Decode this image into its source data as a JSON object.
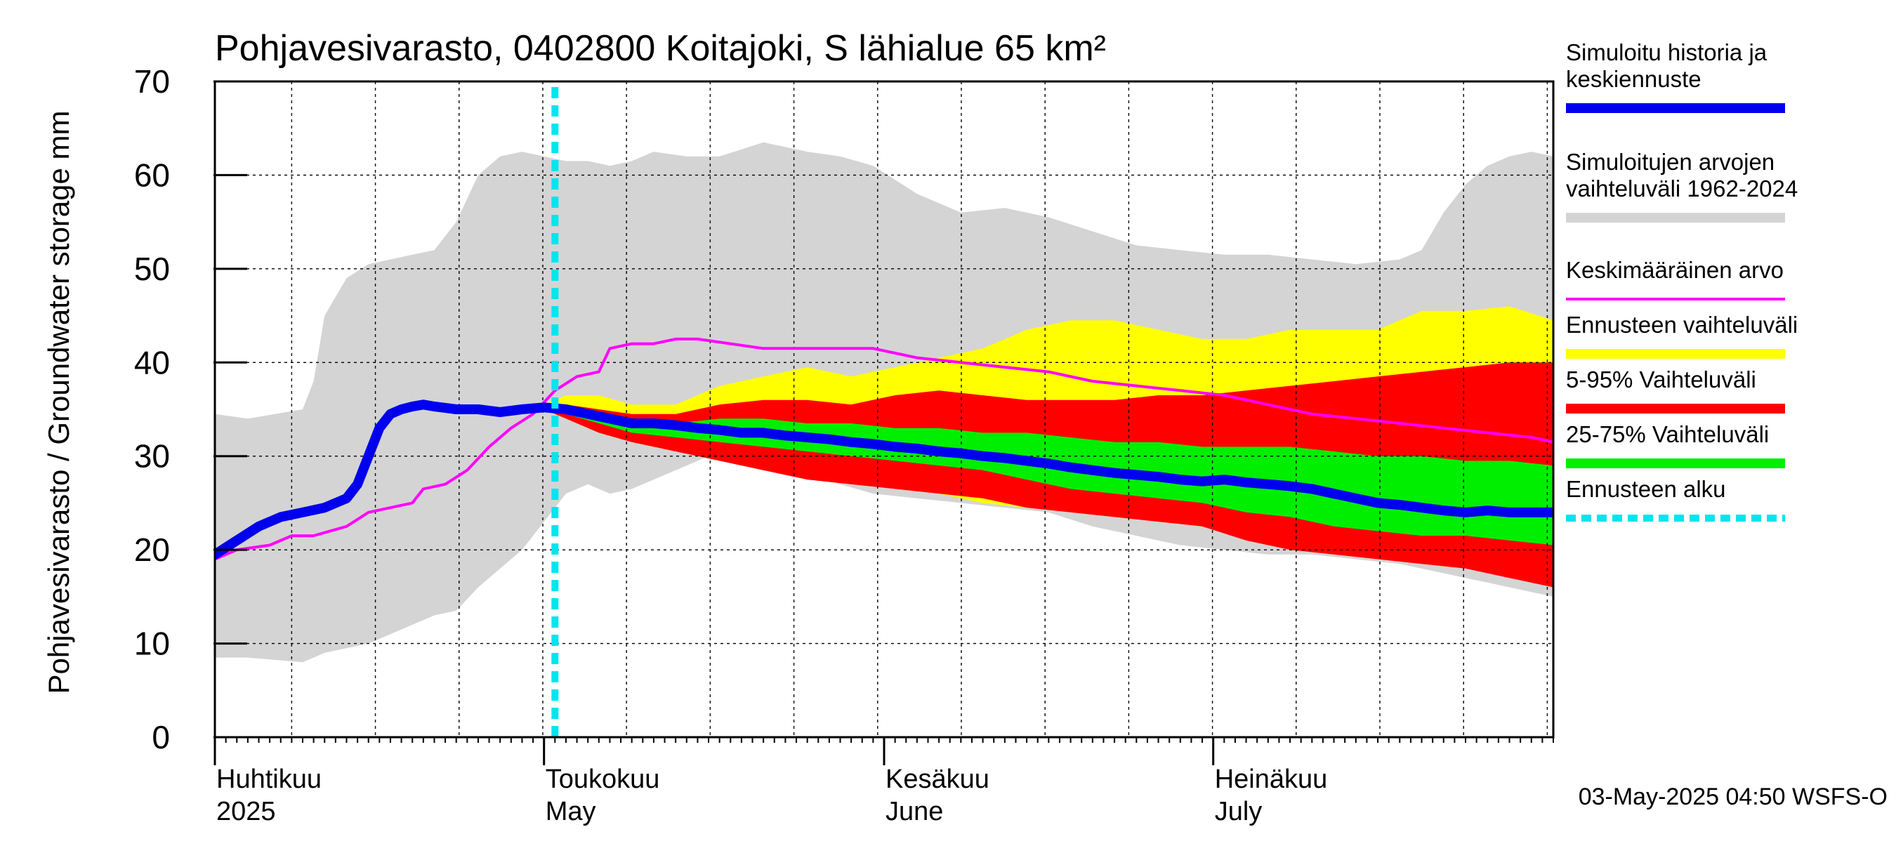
{
  "chart_data": {
    "type": "area",
    "title": "Pohjavesivarasto, 0402800 Koitajoki, S lähialue 65 km²",
    "ylabel": "Pohjavesivarasto / Groundwater storage   mm",
    "ylim": [
      0,
      70
    ],
    "yticks": [
      0,
      10,
      20,
      30,
      40,
      50,
      60,
      70
    ],
    "xlim_days": [
      0,
      122
    ],
    "month_labels": [
      {
        "fi": "Huhtikuu",
        "en": "2025",
        "day": 0
      },
      {
        "fi": "Toukokuu",
        "en": "May",
        "day": 30
      },
      {
        "fi": "Kesäkuu",
        "en": "June",
        "day": 61
      },
      {
        "fi": "Heinäkuu",
        "en": "July",
        "day": 91
      }
    ],
    "forecast_start_day": 31,
    "footer": "03-May-2025 04:50 WSFS-O",
    "legend": [
      {
        "label": "Simuloitu historia ja keskiennuste",
        "color": "#0000ee",
        "style": "thick"
      },
      {
        "label": "Simuloitujen arvojen vaihteluväli 1962-2024",
        "color": "#d4d4d4",
        "style": "band"
      },
      {
        "label": "Keskimääräinen arvo",
        "color": "#ff00ff",
        "style": "line"
      },
      {
        "label": "Ennusteen vaihteluväli",
        "color": "#ffff00",
        "style": "band"
      },
      {
        "label": "5-95% Vaihteluväli",
        "color": "#ff0000",
        "style": "band"
      },
      {
        "label": "25-75% Vaihteluväli",
        "color": "#00ee00",
        "style": "band"
      },
      {
        "label": "Ennusteen alku",
        "color": "#00e5ee",
        "style": "dashed"
      }
    ],
    "series": [
      {
        "name": "Simuloitujen arvojen vaihteluväli 1962-2024",
        "kind": "band",
        "color": "#d4d4d4",
        "x": [
          0,
          3,
          8,
          9,
          10,
          12,
          14,
          16,
          18,
          20,
          22,
          24,
          26,
          28,
          30,
          32,
          34,
          36,
          38,
          40,
          43,
          46,
          50,
          54,
          57,
          60,
          64,
          68,
          72,
          76,
          80,
          84,
          88,
          92,
          96,
          100,
          104,
          108,
          110,
          112,
          114,
          116,
          118,
          120,
          122
        ],
        "upper": [
          34.5,
          34,
          35,
          38,
          45,
          49,
          50.5,
          51,
          51.5,
          52,
          55,
          60,
          62,
          62.5,
          62,
          61.5,
          61.5,
          61,
          61.5,
          62.5,
          62,
          62,
          63.5,
          62.5,
          62,
          61,
          58,
          56,
          56.5,
          55.5,
          54,
          52.5,
          52,
          51.5,
          51.5,
          51,
          50.5,
          51,
          52,
          56,
          59,
          61,
          62,
          62.5,
          62
        ],
        "lower": [
          8.5,
          8.5,
          8,
          8.5,
          9,
          9.5,
          10,
          11,
          12,
          13,
          13.5,
          16,
          18,
          20,
          23,
          26,
          27,
          26,
          26.5,
          27.5,
          29,
          30.5,
          29.5,
          28,
          27,
          26,
          25.5,
          25,
          24.5,
          24,
          22.5,
          21.5,
          20.5,
          20,
          19.5,
          19.5,
          19,
          18.5,
          18,
          17.5,
          17,
          16.5,
          16,
          15.5,
          15
        ]
      },
      {
        "name": "Ennusteen vaihteluväli",
        "kind": "band",
        "color": "#ffff00",
        "x": [
          30,
          32,
          35,
          38,
          42,
          46,
          50,
          54,
          58,
          62,
          66,
          70,
          74,
          78,
          82,
          86,
          90,
          94,
          98,
          102,
          106,
          110,
          114,
          118,
          122
        ],
        "upper": [
          35.5,
          36.5,
          36.5,
          35.5,
          35.5,
          37.5,
          38.5,
          39.5,
          38.5,
          39.5,
          40.5,
          41.5,
          43.5,
          44.5,
          44.5,
          43.5,
          42.5,
          42.5,
          43.5,
          43.5,
          43.5,
          45.5,
          45.5,
          46,
          44.5
        ],
        "lower": [
          35,
          34,
          32.5,
          31.5,
          30.5,
          29.5,
          29,
          28.5,
          27.5,
          26.5,
          26,
          25,
          24.5,
          24,
          23.5,
          23,
          22.5,
          21.5,
          20.5,
          20.5,
          19.5,
          18.5,
          18,
          17.5,
          17
        ]
      },
      {
        "name": "5-95% Vaihteluväli",
        "kind": "band",
        "color": "#ff0000",
        "x": [
          30,
          32,
          35,
          38,
          42,
          46,
          50,
          54,
          58,
          62,
          66,
          70,
          74,
          78,
          82,
          86,
          90,
          94,
          98,
          102,
          106,
          110,
          114,
          118,
          122
        ],
        "upper": [
          35.5,
          35.5,
          35,
          34.5,
          34.5,
          35.5,
          36,
          36,
          35.5,
          36.5,
          37,
          36.5,
          36,
          36,
          36,
          36.5,
          36.5,
          37,
          37.5,
          38,
          38.5,
          39,
          39.5,
          40,
          40
        ],
        "lower": [
          35,
          34,
          32.5,
          31.5,
          30.5,
          29.5,
          28.5,
          27.5,
          27,
          26.5,
          26,
          25.5,
          24.5,
          24,
          23.5,
          23,
          22.5,
          21,
          20,
          19.5,
          19,
          18.5,
          18,
          17,
          16
        ]
      },
      {
        "name": "25-75% Vaihteluväli",
        "kind": "band",
        "color": "#00ee00",
        "x": [
          30,
          32,
          35,
          38,
          42,
          46,
          50,
          54,
          58,
          62,
          66,
          70,
          74,
          78,
          82,
          86,
          90,
          94,
          98,
          102,
          106,
          110,
          114,
          118,
          122
        ],
        "upper": [
          35.3,
          35,
          34.5,
          34,
          33.5,
          34,
          34,
          33.5,
          33.5,
          33,
          33,
          32.5,
          32.5,
          32,
          31.5,
          31.5,
          31,
          31,
          31,
          30.5,
          30,
          30,
          29.5,
          29.5,
          29
        ],
        "lower": [
          35.2,
          34.5,
          33.5,
          32.5,
          32,
          31.5,
          31,
          30.5,
          30,
          29.5,
          29,
          28.5,
          27.5,
          26.5,
          26,
          25.5,
          25,
          24,
          23.5,
          22.5,
          22,
          21.5,
          21.5,
          21,
          20.5
        ]
      },
      {
        "name": "Keskimääräinen arvo",
        "kind": "line",
        "color": "#ff00ff",
        "x": [
          0,
          2,
          5,
          7,
          9,
          12,
          14,
          16,
          18,
          19,
          21,
          23,
          25,
          27,
          29,
          31,
          33,
          35,
          36,
          38,
          40,
          42,
          44,
          47,
          50,
          53,
          57,
          60,
          64,
          68,
          72,
          76,
          80,
          84,
          88,
          92,
          96,
          100,
          104,
          108,
          112,
          116,
          120,
          122
        ],
        "values": [
          19,
          20,
          20.5,
          21.5,
          21.5,
          22.5,
          24,
          24.5,
          25,
          26.5,
          27,
          28.5,
          31,
          33,
          34.5,
          37,
          38.5,
          39,
          41.5,
          42,
          42,
          42.5,
          42.5,
          42,
          41.5,
          41.5,
          41.5,
          41.5,
          40.5,
          40,
          39.5,
          39,
          38,
          37.5,
          37,
          36.5,
          35.5,
          34.5,
          34,
          33.5,
          33,
          32.5,
          32,
          31.5
        ]
      },
      {
        "name": "Simuloitu historia ja keskiennuste",
        "kind": "line",
        "color": "#0000ee",
        "x": [
          0,
          2,
          4,
          6,
          8,
          10,
          12,
          13,
          14,
          15,
          16,
          17,
          18,
          19,
          20,
          22,
          24,
          26,
          28,
          30,
          32,
          34,
          36,
          38,
          40,
          42,
          44,
          46,
          48,
          50,
          52,
          54,
          56,
          58,
          60,
          62,
          64,
          66,
          68,
          70,
          72,
          74,
          76,
          78,
          80,
          82,
          84,
          86,
          88,
          90,
          92,
          94,
          96,
          98,
          100,
          102,
          104,
          106,
          108,
          110,
          112,
          114,
          116,
          118,
          120,
          122
        ],
        "values": [
          19.5,
          21,
          22.5,
          23.5,
          24,
          24.5,
          25.5,
          27,
          30,
          33,
          34.5,
          35,
          35.3,
          35.5,
          35.3,
          35,
          35,
          34.7,
          35,
          35.2,
          35,
          34.5,
          34,
          33.5,
          33.5,
          33.3,
          33,
          32.8,
          32.5,
          32.5,
          32.2,
          32,
          31.8,
          31.5,
          31.3,
          31,
          30.8,
          30.5,
          30.3,
          30,
          29.8,
          29.5,
          29.2,
          28.8,
          28.5,
          28.2,
          28,
          27.8,
          27.5,
          27.3,
          27.5,
          27.2,
          27,
          26.8,
          26.5,
          26,
          25.5,
          25,
          24.8,
          24.5,
          24.2,
          24,
          24.2,
          24,
          24,
          24
        ]
      }
    ]
  }
}
